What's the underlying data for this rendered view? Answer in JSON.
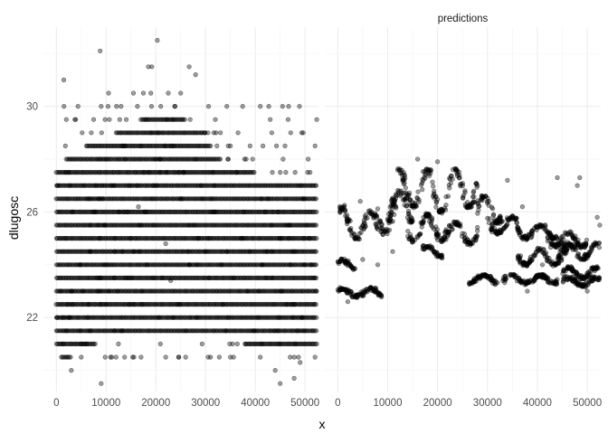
{
  "chart_data": {
    "type": "scatter",
    "xlabel": "x",
    "ylabel": "dlugosc",
    "xlim": [
      -2600,
      52700
    ],
    "ylim": [
      19.2,
      33.0
    ],
    "x_ticks": [
      0,
      10000,
      20000,
      30000,
      40000,
      50000
    ],
    "x_tick_labels": [
      "0",
      "10000",
      "20000",
      "30000",
      "40000",
      "50000"
    ],
    "y_ticks": [
      22,
      26,
      30
    ],
    "y_tick_labels": [
      "22",
      "26",
      "30"
    ],
    "grid": true,
    "colors": {
      "point": "#000000",
      "grid": "#ebebeb",
      "text": "#4d4d4d"
    },
    "panels": [
      {
        "strip": "",
        "series": [
          {
            "levels": [
              20.5,
              21.0,
              21.5,
              22.0,
              22.5,
              23.0,
              23.5,
              24.0,
              24.5,
              25.0,
              25.5,
              26.0,
              26.5,
              27.0,
              27.5,
              28.0,
              28.5,
              29.0,
              29.5,
              30.0
            ],
            "dense_ranges": [
              [
                20.5,
                1000,
                3000
              ],
              [
                21.0,
                0,
                8000
              ],
              [
                21.0,
                38000,
                52500
              ],
              [
                21.5,
                0,
                52500
              ],
              [
                22.0,
                0,
                52500
              ],
              [
                22.5,
                0,
                52500
              ],
              [
                23.0,
                0,
                52500
              ],
              [
                23.5,
                0,
                52500
              ],
              [
                24.0,
                0,
                52500
              ],
              [
                24.5,
                0,
                52500
              ],
              [
                25.0,
                0,
                52500
              ],
              [
                25.5,
                0,
                52500
              ],
              [
                26.0,
                0,
                52500
              ],
              [
                26.5,
                0,
                52500
              ],
              [
                27.0,
                0,
                52500
              ],
              [
                27.5,
                0,
                40000
              ],
              [
                28.0,
                2000,
                33000
              ],
              [
                28.5,
                6000,
                31000
              ],
              [
                29.0,
                12000,
                30000
              ],
              [
                29.5,
                17000,
                26000
              ]
            ],
            "outliers": [
              [
                1500,
                31.0
              ],
              [
                8800,
                32.1
              ],
              [
                20300,
                32.5
              ],
              [
                18500,
                31.5
              ],
              [
                19200,
                31.5
              ],
              [
                26700,
                31.5
              ],
              [
                28000,
                31.2
              ],
              [
                10500,
                30.5
              ],
              [
                15500,
                30.5
              ],
              [
                17500,
                30.5
              ],
              [
                19000,
                30.5
              ],
              [
                22500,
                30.5
              ],
              [
                25000,
                30.5
              ],
              [
                30600,
                30.0
              ],
              [
                9000,
                30.0
              ],
              [
                13000,
                30.0
              ],
              [
                21000,
                30.0
              ],
              [
                23800,
                30.0
              ],
              [
                2000,
                29.5
              ],
              [
                7500,
                29.5
              ],
              [
                33000,
                29.0
              ],
              [
                35000,
                28.5
              ],
              [
                45000,
                27.5
              ],
              [
                48000,
                27.5
              ],
              [
                51000,
                27.5
              ],
              [
                52000,
                28.5
              ],
              [
                9000,
                19.5
              ],
              [
                45000,
                19.5
              ],
              [
                47800,
                19.7
              ],
              [
                44000,
                20.0
              ],
              [
                49000,
                20.3
              ],
              [
                3000,
                20.0
              ],
              [
                5000,
                20.5
              ],
              [
                12000,
                20.5
              ],
              [
                22000,
                20.5
              ],
              [
                26000,
                20.5
              ],
              [
                31000,
                20.5
              ],
              [
                35000,
                20.5
              ],
              [
                41000,
                20.5
              ],
              [
                47000,
                20.5
              ],
              [
                52000,
                20.5
              ],
              [
                16500,
                26.2
              ],
              [
                22000,
                24.8
              ],
              [
                23000,
                23.4
              ]
            ]
          }
        ]
      },
      {
        "strip": "predictions",
        "series": [
          {
            "clusters": [
              [
                0,
                1500,
                25.3,
                26.2
              ],
              [
                1500,
                8000,
                25.0,
                26.0
              ],
              [
                0,
                9000,
                22.8,
                23.1
              ],
              [
                8000,
                12000,
                25.2,
                26.6
              ],
              [
                10000,
                15000,
                25.6,
                26.8
              ],
              [
                12000,
                19000,
                26.2,
                27.6
              ],
              [
                19000,
                22000,
                26.0,
                27.3
              ],
              [
                22000,
                28000,
                26.2,
                27.6
              ],
              [
                14000,
                22000,
                24.9,
                25.9
              ],
              [
                22000,
                28000,
                24.8,
                25.6
              ],
              [
                28000,
                33000,
                25.6,
                26.6
              ],
              [
                30000,
                36000,
                25.2,
                25.8
              ],
              [
                36000,
                44000,
                25.0,
                25.5
              ],
              [
                42000,
                50000,
                24.7,
                25.2
              ],
              [
                36000,
                46000,
                24.0,
                24.6
              ],
              [
                44000,
                52500,
                24.2,
                24.8
              ],
              [
                45000,
                52500,
                23.5,
                23.9
              ],
              [
                45000,
                52500,
                23.2,
                23.5
              ],
              [
                26000,
                32000,
                23.3,
                23.6
              ],
              [
                33000,
                44000,
                23.3,
                23.6
              ],
              [
                17000,
                21000,
                24.3,
                24.7
              ],
              [
                0,
                3500,
                23.8,
                24.2
              ]
            ],
            "outliers": [
              [
                34000,
                27.2
              ],
              [
                44000,
                27.3
              ],
              [
                48500,
                27.3
              ],
              [
                52000,
                25.8
              ],
              [
                52500,
                25.5
              ],
              [
                2000,
                22.6
              ],
              [
                4000,
                22.8
              ],
              [
                16000,
                28.0
              ],
              [
                20000,
                27.9
              ],
              [
                48000,
                27.0
              ],
              [
                4500,
                26.4
              ],
              [
                37000,
                26.2
              ],
              [
                8000,
                24.0
              ],
              [
                11000,
                24.5
              ],
              [
                5000,
                24.2
              ],
              [
                41000,
                24.0
              ],
              [
                38000,
                23.0
              ],
              [
                50000,
                23.0
              ]
            ]
          }
        ]
      }
    ]
  }
}
